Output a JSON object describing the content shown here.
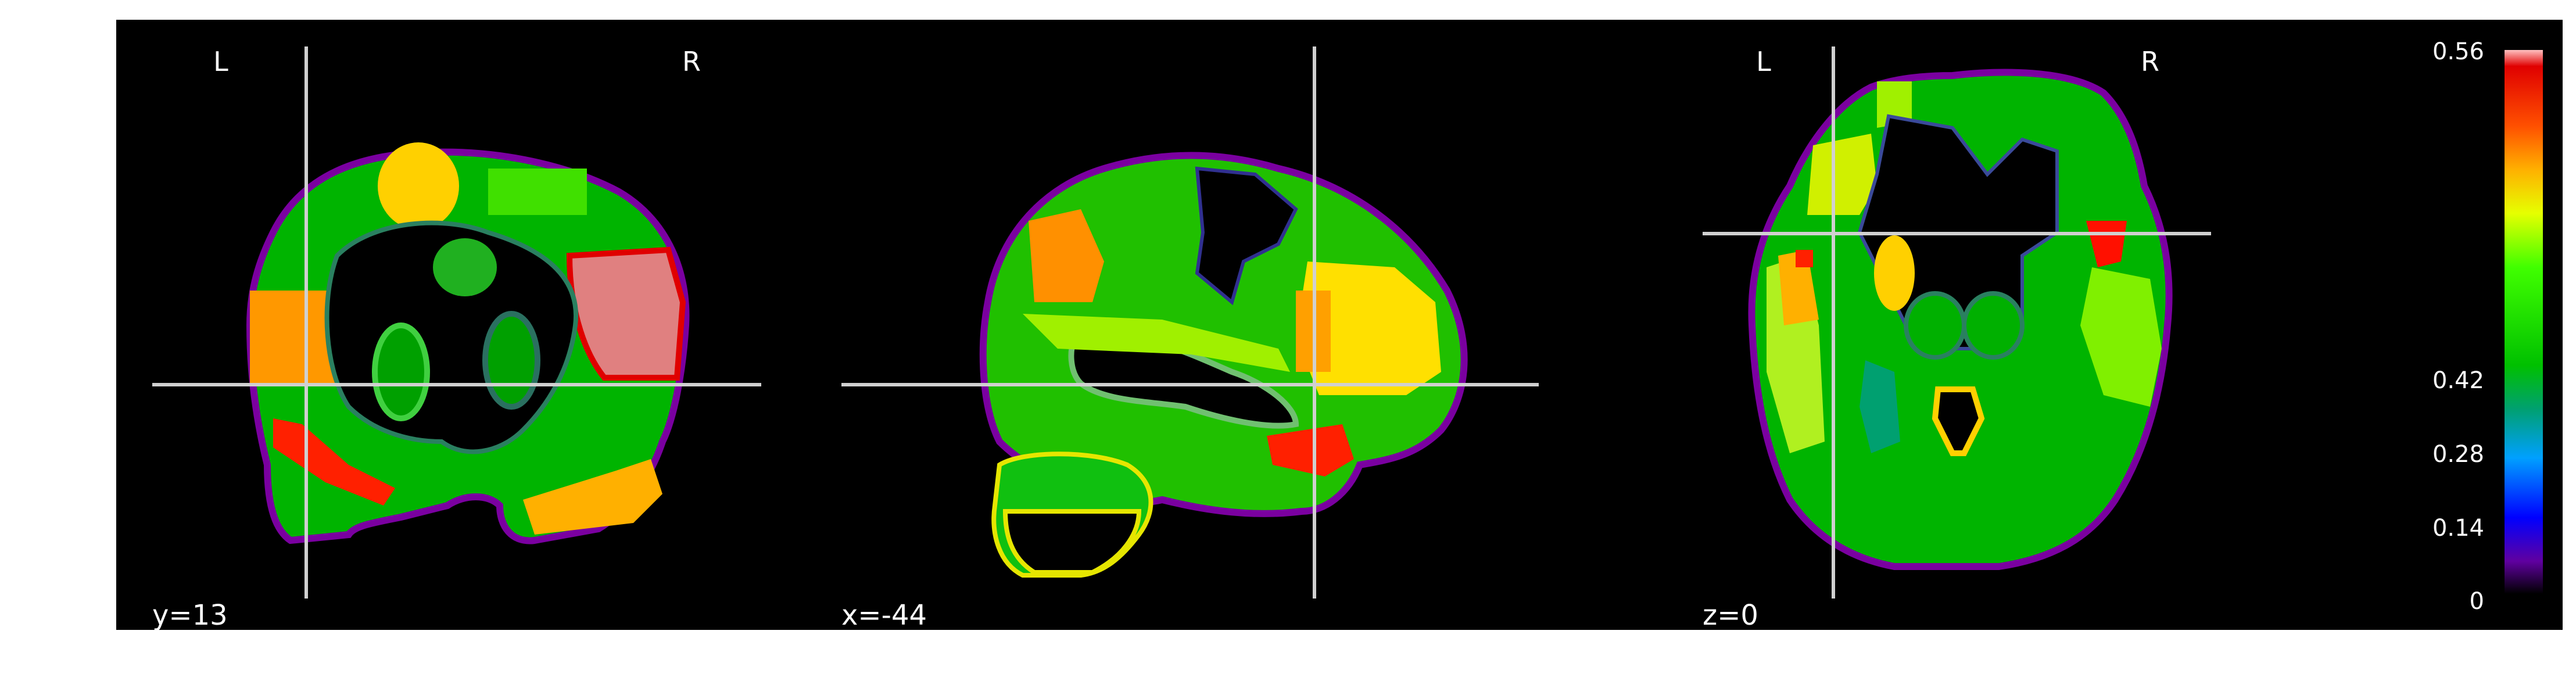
{
  "views": {
    "coronal": {
      "left_marker": "L",
      "right_marker": "R",
      "coord_label": "y=13"
    },
    "sagittal": {
      "coord_label": "x=-44"
    },
    "axial": {
      "left_marker": "L",
      "right_marker": "R",
      "coord_label": "z=0"
    }
  },
  "colorbar": {
    "max_label": "0.56",
    "tick_labels": [
      "0.42",
      "0.28",
      "0.14"
    ],
    "min_label": "0",
    "colormap": [
      "#ffc0c0",
      "#e00000",
      "#ff8000",
      "#ffd000",
      "#e6ff00",
      "#40ff00",
      "#00c000",
      "#00a070",
      "#00a0ff",
      "#0000ff",
      "#6000a0",
      "#000000"
    ]
  },
  "colors": {
    "background": "#000000",
    "crosshair": "#d0d0d0",
    "figure_background": "#ffffff"
  }
}
